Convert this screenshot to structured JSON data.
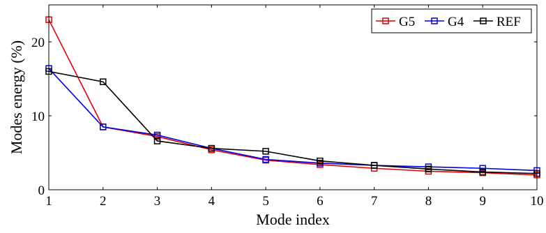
{
  "chart_data": {
    "type": "line",
    "title": "",
    "xlabel": "Mode index",
    "ylabel": "Modes energy (%)",
    "x": [
      1,
      2,
      3,
      4,
      5,
      6,
      7,
      8,
      9,
      10
    ],
    "xlim": [
      1,
      10
    ],
    "ylim": [
      0,
      25
    ],
    "xticks": [
      "1",
      "2",
      "3",
      "4",
      "5",
      "6",
      "7",
      "8",
      "9",
      "10"
    ],
    "yticks": [
      0,
      10,
      20
    ],
    "ytick_labels": [
      "0",
      "10",
      "20"
    ],
    "grid": false,
    "legend_position": "top-right",
    "series": [
      {
        "name": "G5",
        "color": "#e00000",
        "marker": "square",
        "values": [
          23.0,
          8.5,
          7.2,
          5.4,
          4.0,
          3.4,
          2.9,
          2.5,
          2.3,
          2.0
        ]
      },
      {
        "name": "G4",
        "color": "#0000e0",
        "marker": "square",
        "values": [
          16.4,
          8.5,
          7.4,
          5.6,
          4.1,
          3.6,
          3.3,
          3.1,
          2.9,
          2.6
        ]
      },
      {
        "name": "REF",
        "color": "#000000",
        "marker": "square",
        "values": [
          16.0,
          14.6,
          6.6,
          5.6,
          5.2,
          3.9,
          3.3,
          2.8,
          2.4,
          2.2
        ]
      }
    ]
  }
}
